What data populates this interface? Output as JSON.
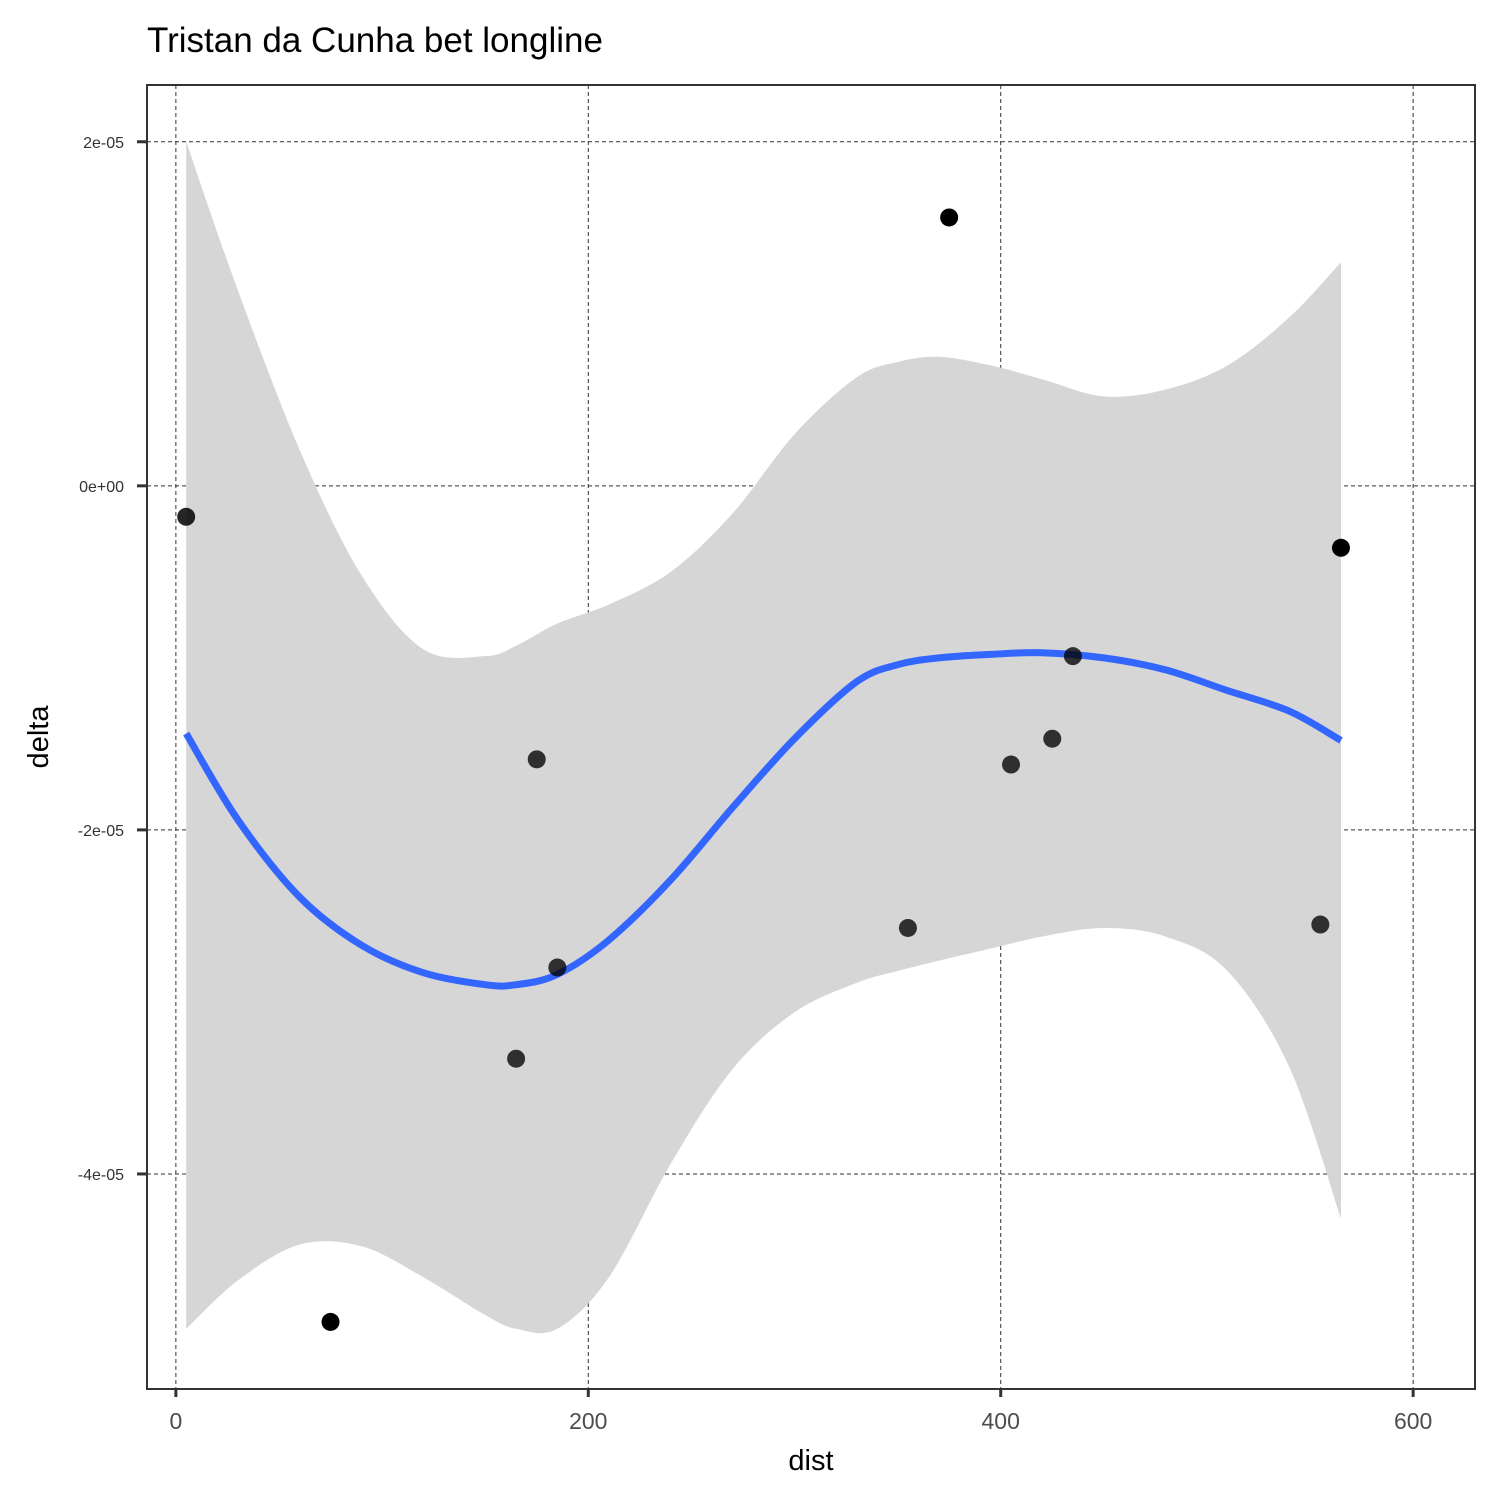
{
  "chart_data": {
    "type": "scatter",
    "title": "Tristan da Cunha bet longline",
    "xlabel": "dist",
    "ylabel": "delta",
    "xlim": [
      -14,
      630
    ],
    "ylim": [
      -5.25e-05,
      2.33e-05
    ],
    "x_ticks": [
      {
        "value": 0,
        "label": "0"
      },
      {
        "value": 200,
        "label": "200"
      },
      {
        "value": 400,
        "label": "400"
      },
      {
        "value": 600,
        "label": "600"
      }
    ],
    "y_ticks": [
      {
        "value": 2e-05,
        "label": "2e-05"
      },
      {
        "value": 0,
        "label": "0e+00"
      },
      {
        "value": -2e-05,
        "label": "-2e-05"
      },
      {
        "value": -4e-05,
        "label": "-4e-05"
      }
    ],
    "grid": true,
    "legend": "none",
    "colors": {
      "points": "#000000",
      "smooth": "#3366ff",
      "ribbon": "#d6d6d6"
    },
    "points": [
      {
        "x": 5,
        "y": -1.8e-06,
        "alpha": 0.85
      },
      {
        "x": 75,
        "y": -4.86e-05,
        "alpha": 1.0
      },
      {
        "x": 165,
        "y": -3.33e-05,
        "alpha": 0.78
      },
      {
        "x": 175,
        "y": -1.59e-05,
        "alpha": 0.78
      },
      {
        "x": 185,
        "y": -2.8e-05,
        "alpha": 0.78
      },
      {
        "x": 355,
        "y": -2.57e-05,
        "alpha": 0.78
      },
      {
        "x": 375,
        "y": 1.56e-05,
        "alpha": 1.0
      },
      {
        "x": 405,
        "y": -1.62e-05,
        "alpha": 0.78
      },
      {
        "x": 425,
        "y": -1.47e-05,
        "alpha": 0.78
      },
      {
        "x": 435,
        "y": -9.9e-06,
        "alpha": 0.78
      },
      {
        "x": 555,
        "y": -2.55e-05,
        "alpha": 0.78
      },
      {
        "x": 565,
        "y": -3.6e-06,
        "alpha": 1.0
      }
    ],
    "smooth": {
      "x": [
        5,
        30,
        60,
        90,
        120,
        150,
        165,
        185,
        210,
        240,
        270,
        300,
        330,
        350,
        370,
        395,
        420,
        450,
        480,
        510,
        540,
        565
      ],
      "y": [
        -1.44e-05,
        -1.94e-05,
        -2.39e-05,
        -2.67e-05,
        -2.83e-05,
        -2.9e-05,
        -2.9e-05,
        -2.84e-05,
        -2.64e-05,
        -2.29e-05,
        -1.87e-05,
        -1.47e-05,
        -1.14e-05,
        -1.04e-05,
        -1e-05,
        -9.8e-06,
        -9.7e-06,
        -1e-05,
        -1.07e-05,
        -1.19e-05,
        -1.31e-05,
        -1.48e-05
      ],
      "upper": [
        2e-05,
        1.14e-05,
        2.1e-06,
        -5.2e-06,
        -9.5e-06,
        -9.9e-06,
        -9.3e-06,
        -8e-06,
        -6.9e-06,
        -5e-06,
        -1.6e-06,
        3e-06,
        6.3e-06,
        7.2e-06,
        7.5e-06,
        7e-06,
        6.2e-06,
        5.2e-06,
        5.6e-06,
        7e-06,
        9.8e-06,
        1.3e-05
      ],
      "lower": [
        -4.9e-05,
        -4.62e-05,
        -4.41e-05,
        -4.42e-05,
        -4.6e-05,
        -4.82e-05,
        -4.9e-05,
        -4.9e-05,
        -4.6e-05,
        -3.94e-05,
        -3.39e-05,
        -3.06e-05,
        -2.89e-05,
        -2.82e-05,
        -2.76e-05,
        -2.69e-05,
        -2.62e-05,
        -2.57e-05,
        -2.62e-05,
        -2.82e-05,
        -3.38e-05,
        -4.26e-05
      ]
    }
  }
}
